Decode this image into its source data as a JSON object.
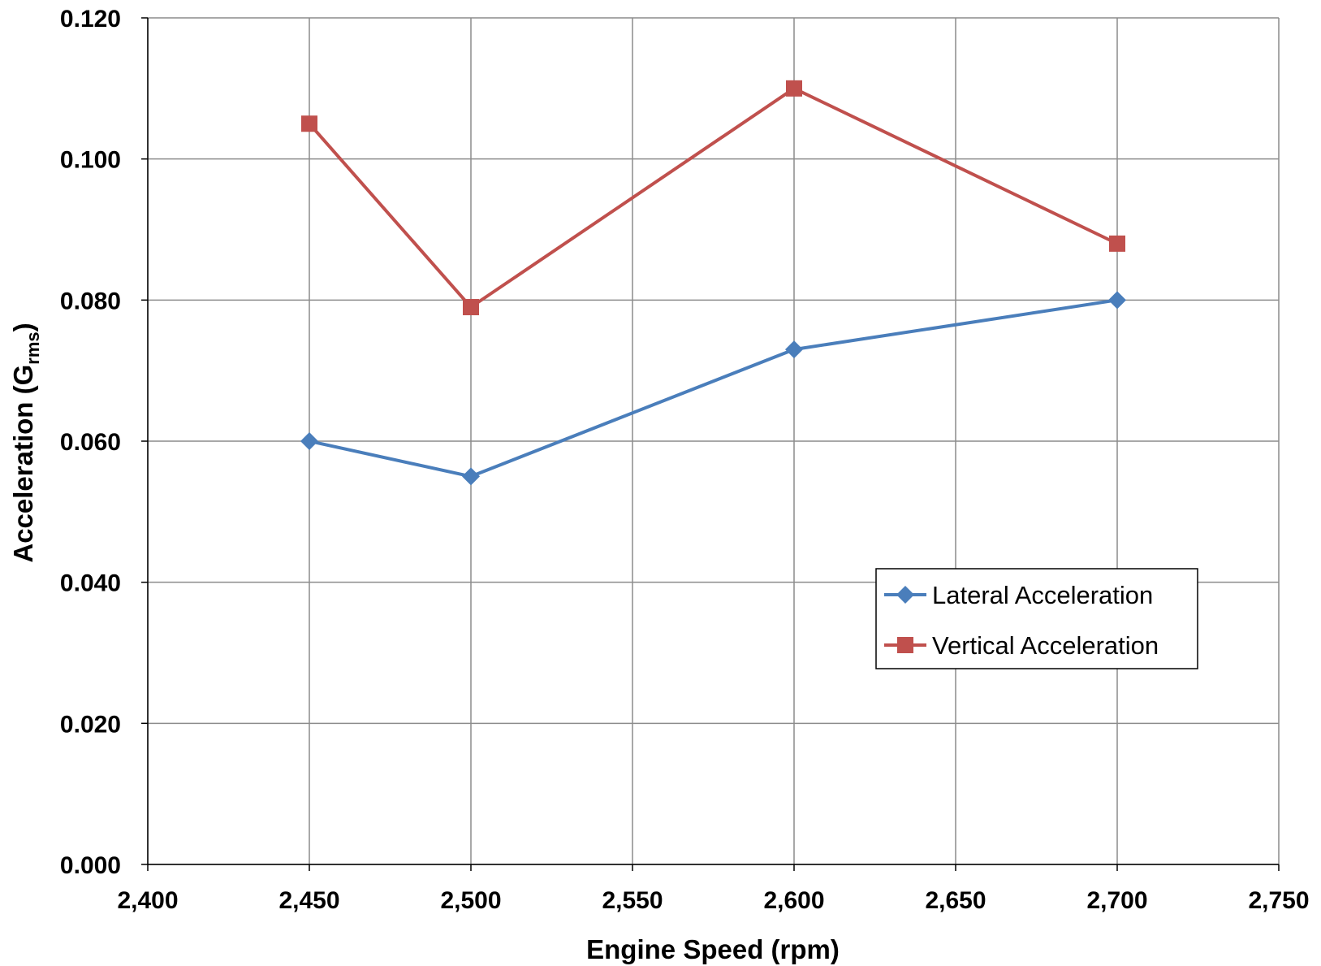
{
  "chart_data": {
    "type": "line",
    "xlabel": "Engine Speed (rpm)",
    "ylabel": {
      "main": "Acceleration (G",
      "sub": "rms",
      "close": ")"
    },
    "xlim": [
      2400,
      2750
    ],
    "ylim": [
      0.0,
      0.12
    ],
    "x_ticks": [
      "2,400",
      "2,450",
      "2,500",
      "2,550",
      "2,600",
      "2,650",
      "2,700",
      "2,750"
    ],
    "y_ticks": [
      "0.000",
      "0.020",
      "0.040",
      "0.060",
      "0.080",
      "0.100",
      "0.120"
    ],
    "x_tick_values": [
      2400,
      2450,
      2500,
      2550,
      2600,
      2650,
      2700,
      2750
    ],
    "y_tick_values": [
      0,
      0.02,
      0.04,
      0.06,
      0.08,
      0.1,
      0.12
    ],
    "grid": true,
    "legend_position": "center-right",
    "series": [
      {
        "name": "Lateral Acceleration",
        "color": "#4a7ebb",
        "marker": "diamond",
        "x": [
          2450,
          2500,
          2600,
          2700
        ],
        "y": [
          0.06,
          0.055,
          0.073,
          0.08
        ]
      },
      {
        "name": "Vertical Acceleration",
        "color": "#c0504d",
        "marker": "square",
        "x": [
          2450,
          2500,
          2600,
          2700
        ],
        "y": [
          0.105,
          0.079,
          0.11,
          0.088
        ]
      }
    ]
  }
}
